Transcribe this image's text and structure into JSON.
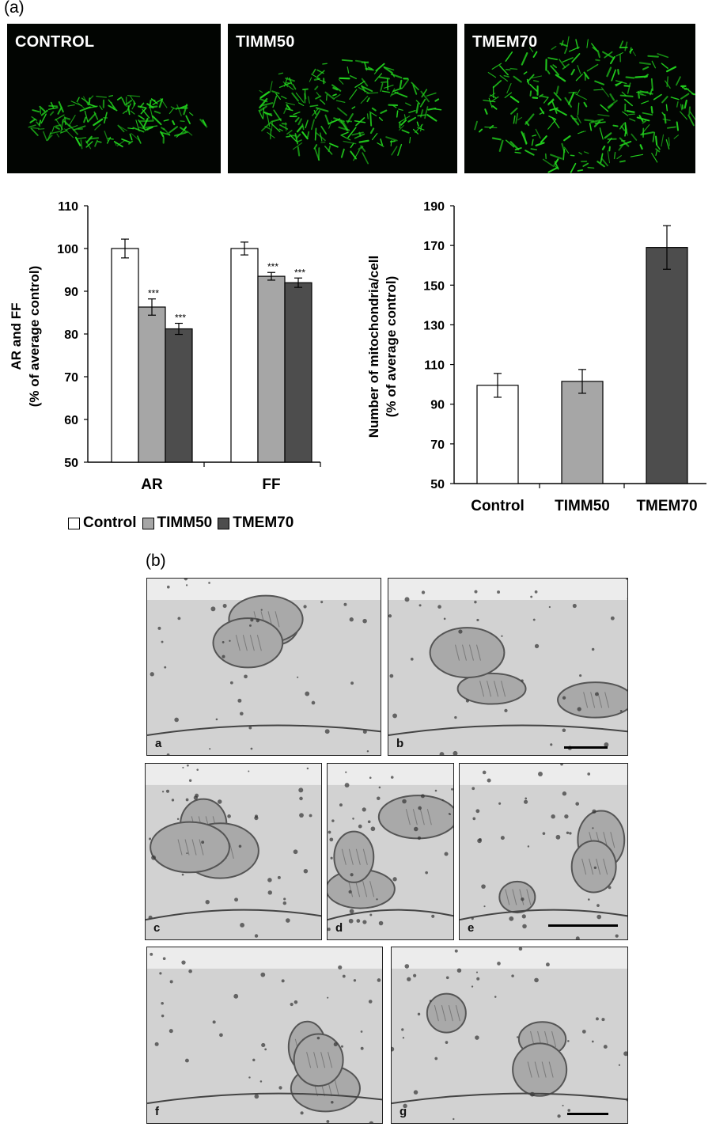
{
  "panel_a_letter": "(a)",
  "panel_b_letter": "(b)",
  "micrographs": [
    {
      "label": "CONTROL"
    },
    {
      "label": "TIMM50"
    },
    {
      "label": "TMEM70"
    }
  ],
  "chart_data": [
    {
      "type": "bar",
      "ylabel_line1": "AR and FF",
      "ylabel_line2": "(% of average control)",
      "ylim": [
        50,
        110
      ],
      "yticks": [
        "50",
        "60",
        "70",
        "80",
        "90",
        "100",
        "110"
      ],
      "categories": [
        "AR",
        "FF"
      ],
      "series": [
        {
          "name": "Control",
          "color": "#ffffff",
          "values": [
            100,
            100
          ],
          "errors": [
            2.2,
            1.5
          ]
        },
        {
          "name": "TIMM50",
          "color": "#a6a6a6",
          "values": [
            86.3,
            93.5
          ],
          "errors": [
            1.9,
            0.9
          ]
        },
        {
          "name": "TMEM70",
          "color": "#4d4d4d",
          "values": [
            81.2,
            92.0
          ],
          "errors": [
            1.3,
            1.1
          ]
        }
      ],
      "significance": [
        [
          "",
          "***",
          "***"
        ],
        [
          "",
          "***",
          "***"
        ]
      ],
      "legend_position": "bottom",
      "grid": false
    },
    {
      "type": "bar",
      "ylabel_line1": "Number of mitochondria/cell",
      "ylabel_line2": "(% of average control)",
      "ylim": [
        50,
        190
      ],
      "yticks": [
        "50",
        "70",
        "90",
        "110",
        "130",
        "150",
        "170",
        "190"
      ],
      "categories": [
        "Control",
        "TIMM50",
        "TMEM70"
      ],
      "colors": [
        "#ffffff",
        "#a6a6a6",
        "#4d4d4d"
      ],
      "values": [
        99.5,
        101.5,
        169
      ],
      "errors": [
        6,
        6,
        11
      ],
      "grid": false
    }
  ],
  "legend": [
    {
      "label": "Control",
      "color": "#ffffff"
    },
    {
      "label": "TIMM50",
      "color": "#a6a6a6"
    },
    {
      "label": "TMEM70",
      "color": "#4d4d4d"
    }
  ],
  "em_panels": [
    {
      "label": "a"
    },
    {
      "label": "b"
    },
    {
      "label": "c"
    },
    {
      "label": "d"
    },
    {
      "label": "e"
    },
    {
      "label": "f"
    },
    {
      "label": "g"
    }
  ],
  "colors": {
    "mito_green": "#22d41e",
    "em_bg": "#c9c9c9"
  }
}
